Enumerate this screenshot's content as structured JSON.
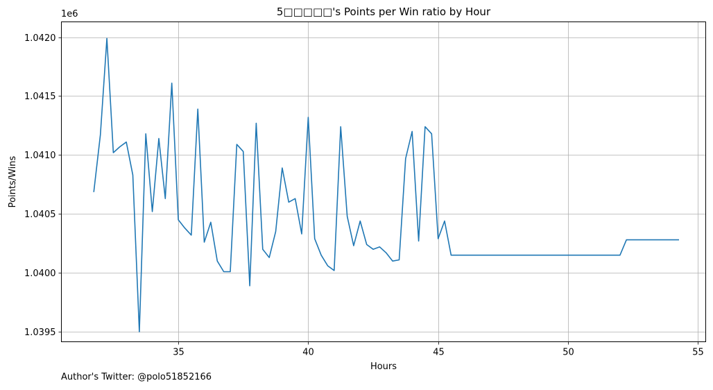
{
  "chart_data": {
    "type": "line",
    "title": "5□□□□□'s Points per Win ratio by Hour",
    "xlabel": "Hours",
    "ylabel": "Points/Wins",
    "offset_label": "1e6",
    "xlim": [
      30.5,
      55.3
    ],
    "ylim": [
      1039415,
      1042130
    ],
    "grid": true,
    "x_ticks": [
      35,
      40,
      45,
      50,
      55
    ],
    "x_tick_labels": [
      "35",
      "40",
      "45",
      "50",
      "55"
    ],
    "y_ticks": [
      1039500,
      1040000,
      1040500,
      1041000,
      1041500,
      1042000
    ],
    "y_tick_labels": [
      "1.0395",
      "1.0400",
      "1.0405",
      "1.0410",
      "1.0415",
      "1.0420"
    ],
    "series": [
      {
        "color": "#1f77b4",
        "x": [
          31.75,
          32.0,
          32.25,
          32.5,
          32.75,
          33.0,
          33.25,
          33.5,
          33.75,
          34.0,
          34.25,
          34.5,
          34.75,
          35.0,
          35.25,
          35.5,
          35.75,
          36.0,
          36.25,
          36.5,
          36.75,
          37.0,
          37.25,
          37.5,
          37.75,
          38.0,
          38.25,
          38.5,
          38.75,
          39.0,
          39.25,
          39.5,
          39.75,
          40.0,
          40.25,
          40.5,
          40.75,
          41.0,
          41.25,
          41.5,
          41.75,
          42.0,
          42.25,
          42.5,
          42.75,
          43.0,
          43.25,
          43.5,
          43.75,
          44.0,
          44.25,
          44.5,
          44.75,
          45.0,
          45.25,
          45.5,
          46.0,
          47.0,
          48.0,
          49.0,
          50.0,
          51.0,
          52.0,
          52.25,
          53.0,
          54.0,
          54.25
        ],
        "y": [
          1040690,
          1041170,
          1041990,
          1041020,
          1041070,
          1041110,
          1040830,
          1039500,
          1041180,
          1040520,
          1041140,
          1040630,
          1041610,
          1040450,
          1040380,
          1040320,
          1041390,
          1040260,
          1040430,
          1040100,
          1040010,
          1040010,
          1041090,
          1041030,
          1039890,
          1041270,
          1040200,
          1040130,
          1040350,
          1040890,
          1040600,
          1040630,
          1040330,
          1041320,
          1040290,
          1040150,
          1040060,
          1040020,
          1041240,
          1040480,
          1040230,
          1040440,
          1040240,
          1040200,
          1040220,
          1040170,
          1040100,
          1040110,
          1040970,
          1041200,
          1040270,
          1041240,
          1041180,
          1040290,
          1040440,
          1040150,
          1040150,
          1040150,
          1040150,
          1040150,
          1040150,
          1040150,
          1040150,
          1040280,
          1040280,
          1040280,
          1040280
        ]
      }
    ]
  },
  "footer": {
    "author_text": "Author's Twitter: @polo51852166"
  }
}
